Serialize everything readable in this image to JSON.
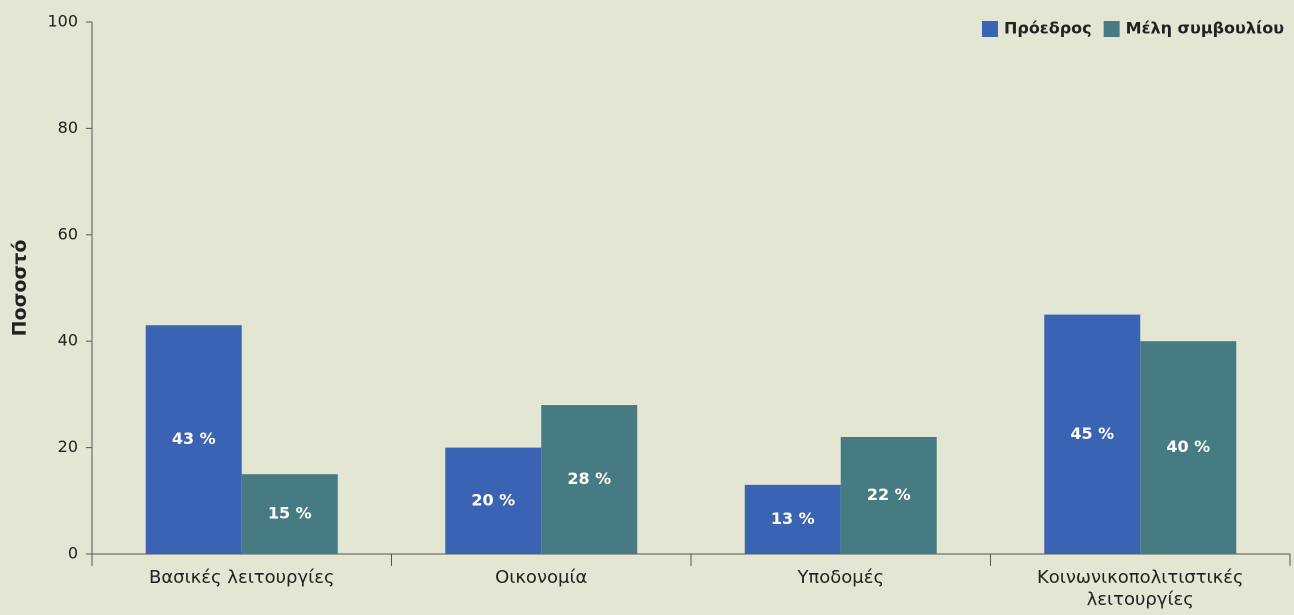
{
  "chart_data": {
    "type": "bar",
    "y_label": "Ποσοστό",
    "categories": [
      "Βασικές λειτουργίες",
      "Οικονομία",
      "Υποδομές",
      "Κοινωνικοπολιτιστικές λειτουργίες"
    ],
    "series": [
      {
        "name": "Πρόεδρος",
        "color": "#3b63b3",
        "values": [
          43,
          20,
          13,
          45
        ],
        "value_labels": [
          "43 %",
          "20 %",
          "13 %",
          "45 %"
        ]
      },
      {
        "name": "Μέλη συμβουλίου",
        "color": "#477b83",
        "values": [
          15,
          28,
          22,
          40
        ],
        "value_labels": [
          "15 %",
          "28 %",
          "22 %",
          "40 %"
        ]
      }
    ],
    "ylim": [
      0,
      100
    ],
    "yticks": [
      0,
      20,
      40,
      60,
      80,
      100
    ],
    "legend": "upper right"
  }
}
